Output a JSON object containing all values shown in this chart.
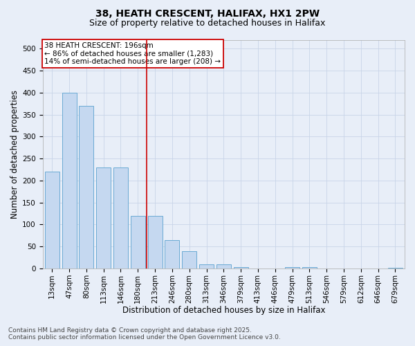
{
  "title_line1": "38, HEATH CRESCENT, HALIFAX, HX1 2PW",
  "title_line2": "Size of property relative to detached houses in Halifax",
  "xlabel": "Distribution of detached houses by size in Halifax",
  "ylabel": "Number of detached properties",
  "categories": [
    "13sqm",
    "47sqm",
    "80sqm",
    "113sqm",
    "146sqm",
    "180sqm",
    "213sqm",
    "246sqm",
    "280sqm",
    "313sqm",
    "346sqm",
    "379sqm",
    "413sqm",
    "446sqm",
    "479sqm",
    "513sqm",
    "546sqm",
    "579sqm",
    "612sqm",
    "646sqm",
    "679sqm"
  ],
  "values": [
    220,
    400,
    370,
    230,
    230,
    120,
    120,
    65,
    40,
    10,
    10,
    4,
    0,
    0,
    4,
    4,
    0,
    0,
    0,
    0,
    2
  ],
  "bar_color": "#c5d8f0",
  "bar_edge_color": "#6aaad4",
  "vline_x": 6.0,
  "vline_color": "#cc0000",
  "annotation_text": "38 HEATH CRESCENT: 196sqm\n← 86% of detached houses are smaller (1,283)\n14% of semi-detached houses are larger (208) →",
  "annotation_box_facecolor": "#ffffff",
  "annotation_box_edgecolor": "#cc0000",
  "ylim": [
    0,
    520
  ],
  "yticks": [
    0,
    50,
    100,
    150,
    200,
    250,
    300,
    350,
    400,
    450,
    500
  ],
  "footer_line1": "Contains HM Land Registry data © Crown copyright and database right 2025.",
  "footer_line2": "Contains public sector information licensed under the Open Government Licence v3.0.",
  "background_color": "#e8eef8",
  "plot_background_color": "#e8eef8",
  "grid_color": "#c8d4e8",
  "title_fontsize": 10,
  "subtitle_fontsize": 9,
  "axis_label_fontsize": 8.5,
  "tick_fontsize": 7.5,
  "annotation_fontsize": 7.5,
  "footer_fontsize": 6.5
}
